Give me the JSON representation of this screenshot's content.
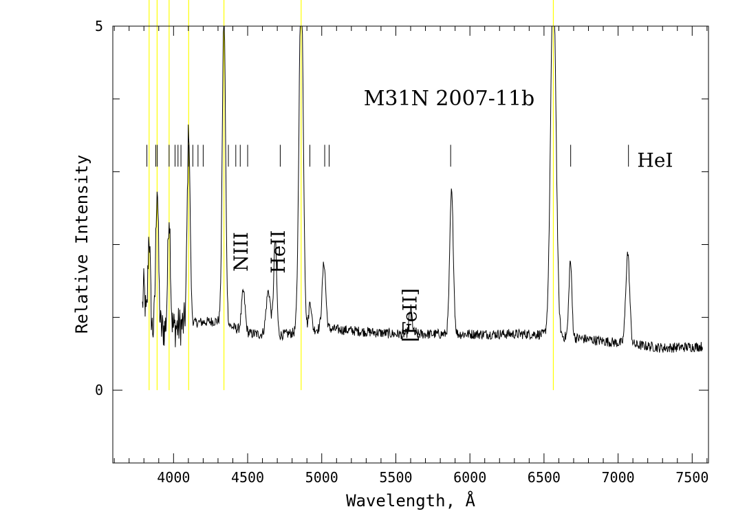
{
  "chart_data": {
    "type": "line",
    "title": "M31N 2007-11b",
    "xlabel": "Wavelength, Å",
    "ylabel": "Relative Intensity",
    "xlim": [
      3590,
      7610
    ],
    "ylim": [
      -1,
      5
    ],
    "x_ticks": [
      4000,
      4500,
      5000,
      5500,
      6000,
      6500,
      7000,
      7500
    ],
    "y_ticks": [
      0,
      5
    ],
    "grid": false,
    "series": [
      {
        "color": "#000000",
        "baseline": [
          [
            3800,
            0.9
          ],
          [
            3850,
            0.82
          ],
          [
            4000,
            0.85
          ],
          [
            4100,
            0.92
          ],
          [
            4300,
            0.95
          ],
          [
            4500,
            0.78
          ],
          [
            4700,
            0.75
          ],
          [
            5000,
            0.85
          ],
          [
            5500,
            0.77
          ],
          [
            6000,
            0.77
          ],
          [
            6450,
            0.77
          ],
          [
            6700,
            0.72
          ],
          [
            7000,
            0.65
          ],
          [
            7300,
            0.58
          ],
          [
            7570,
            0.6
          ]
        ],
        "peaks": [
          {
            "x": 3800,
            "amp": 0.5,
            "width": 8
          },
          {
            "x": 3835,
            "amp": 1.3,
            "width": 8
          },
          {
            "x": 3889,
            "amp": 2.0,
            "width": 9
          },
          {
            "x": 3970,
            "amp": 1.6,
            "width": 9
          },
          {
            "x": 4102,
            "amp": 2.6,
            "width": 10
          },
          {
            "x": 4340,
            "amp": 4.3,
            "width": 11
          },
          {
            "x": 4471,
            "amp": 0.55,
            "width": 12
          },
          {
            "x": 4640,
            "amp": 0.6,
            "width": 15
          },
          {
            "x": 4686,
            "amp": 1.3,
            "width": 10
          },
          {
            "x": 4861,
            "amp": 5.0,
            "width": 14
          },
          {
            "x": 4922,
            "amp": 0.4,
            "width": 9
          },
          {
            "x": 5015,
            "amp": 0.9,
            "width": 12
          },
          {
            "x": 5600,
            "amp": 0.35,
            "width": 10
          },
          {
            "x": 5876,
            "amp": 1.95,
            "width": 12
          },
          {
            "x": 6563,
            "amp": 5.0,
            "width": 18
          },
          {
            "x": 6678,
            "amp": 1.05,
            "width": 10
          },
          {
            "x": 7065,
            "amp": 1.25,
            "width": 13
          }
        ],
        "noise": 0.07
      }
    ],
    "line_marks": {
      "y_range": [
        3.07,
        3.37
      ],
      "x": [
        3820,
        3880,
        3890,
        3970,
        4010,
        4030,
        4050,
        4100,
        4130,
        4165,
        4200,
        4370,
        4420,
        4450,
        4500,
        4720,
        4920,
        5020,
        5050,
        5870,
        6680,
        7070
      ],
      "labels": [
        {
          "text": "NIII",
          "x": 4500,
          "y": 1.9,
          "rotate": true
        },
        {
          "text": "HeII",
          "x": 4750,
          "y": 1.9,
          "rotate": true
        },
        {
          "text": "[FeII]",
          "x": 5640,
          "y": 1.03,
          "rotate": true
        },
        {
          "text": "HeI",
          "x": 7250,
          "y": 3.07,
          "rotate": false
        }
      ]
    },
    "reference_lines": {
      "color": "#ffff00",
      "x": [
        3835,
        3889,
        3970,
        4102,
        4340,
        4861,
        6563
      ]
    }
  }
}
